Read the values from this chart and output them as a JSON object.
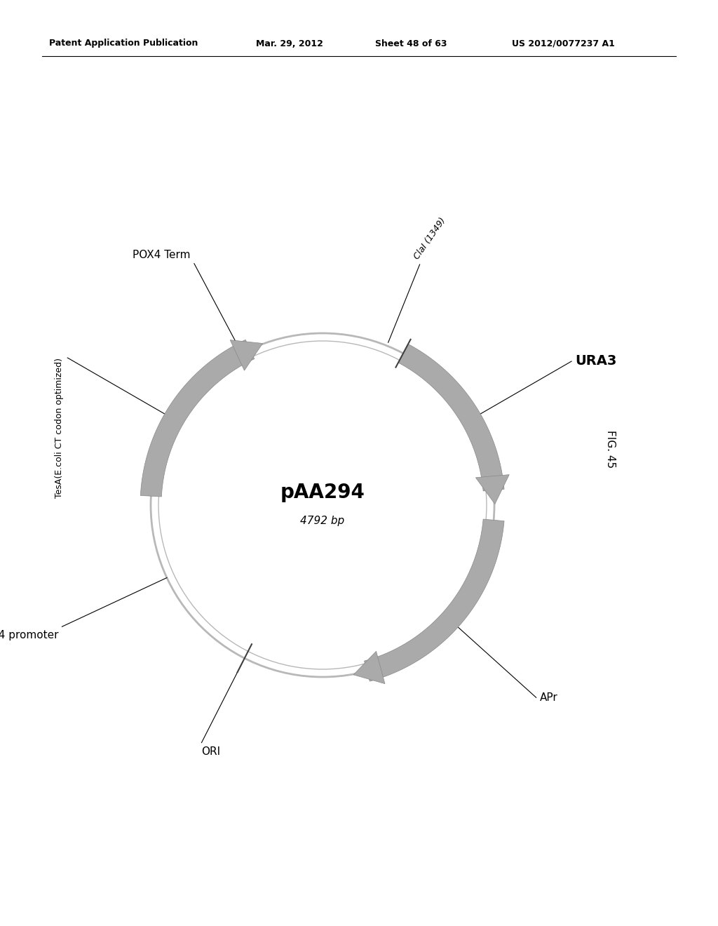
{
  "title": "pAA294",
  "subtitle": "4792 bp",
  "figure_label": "FIG. 45",
  "patent_header": "Patent Application Publication",
  "patent_date": "Mar. 29, 2012",
  "patent_sheet": "Sheet 48 of 63",
  "patent_number": "US 2012/0077237 A1",
  "background_color": "#ffffff",
  "circle_color": "#b8b8b8",
  "segment_color": "#aaaaaa",
  "segment_edge_color": "#888888"
}
